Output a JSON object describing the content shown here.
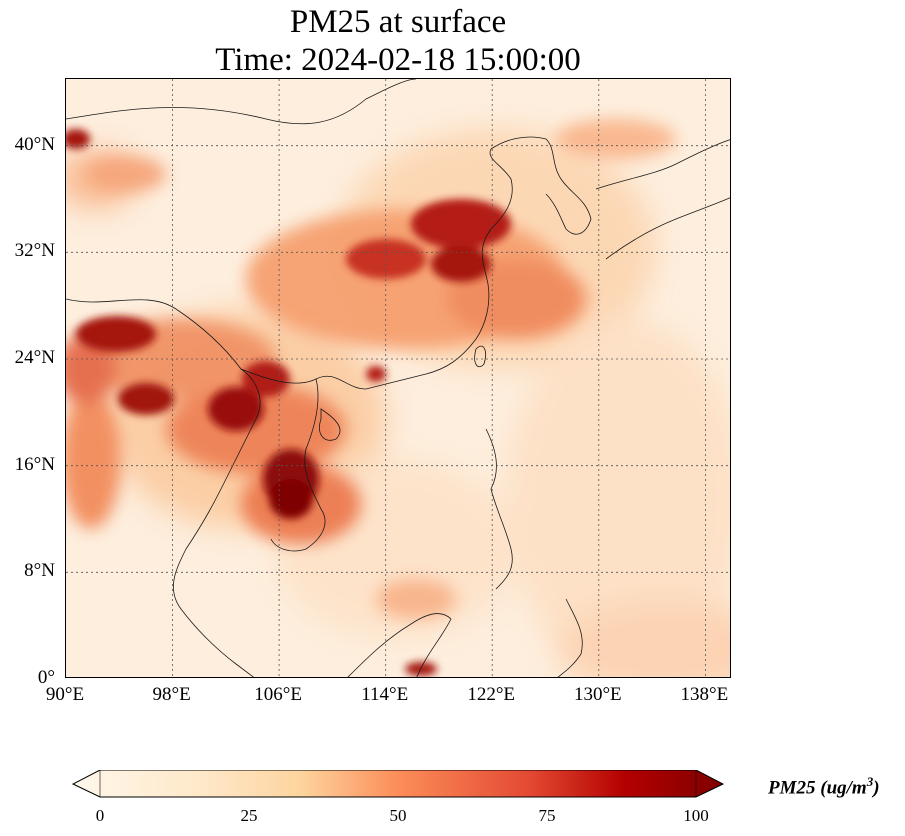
{
  "title": {
    "line1": "PM25 at surface",
    "line2": "Time: 2024-02-18 15:00:00"
  },
  "map": {
    "lon_ticks": [
      "90°E",
      "98°E",
      "106°E",
      "114°E",
      "122°E",
      "130°E",
      "138°E"
    ],
    "lat_ticks": [
      "0°",
      "8°N",
      "16°N",
      "24°N",
      "32°N",
      "40°N"
    ],
    "lon_range": [
      90,
      140
    ],
    "lat_range": [
      0,
      45
    ],
    "gridlines": true,
    "colormap": "OrRd",
    "colors": {
      "low": "#fff7ec",
      "mid_low": "#fdd49e",
      "mid": "#fc8d59",
      "mid_high": "#d7301f",
      "high": "#7f0000"
    }
  },
  "colorbar": {
    "ticks": [
      "0",
      "25",
      "50",
      "75",
      "100"
    ],
    "min": 0,
    "max": 100,
    "label_var": "PM25",
    "label_unit_open": "(ug/m",
    "label_unit_power": "3",
    "label_unit_close": ")",
    "extend": "both"
  }
}
